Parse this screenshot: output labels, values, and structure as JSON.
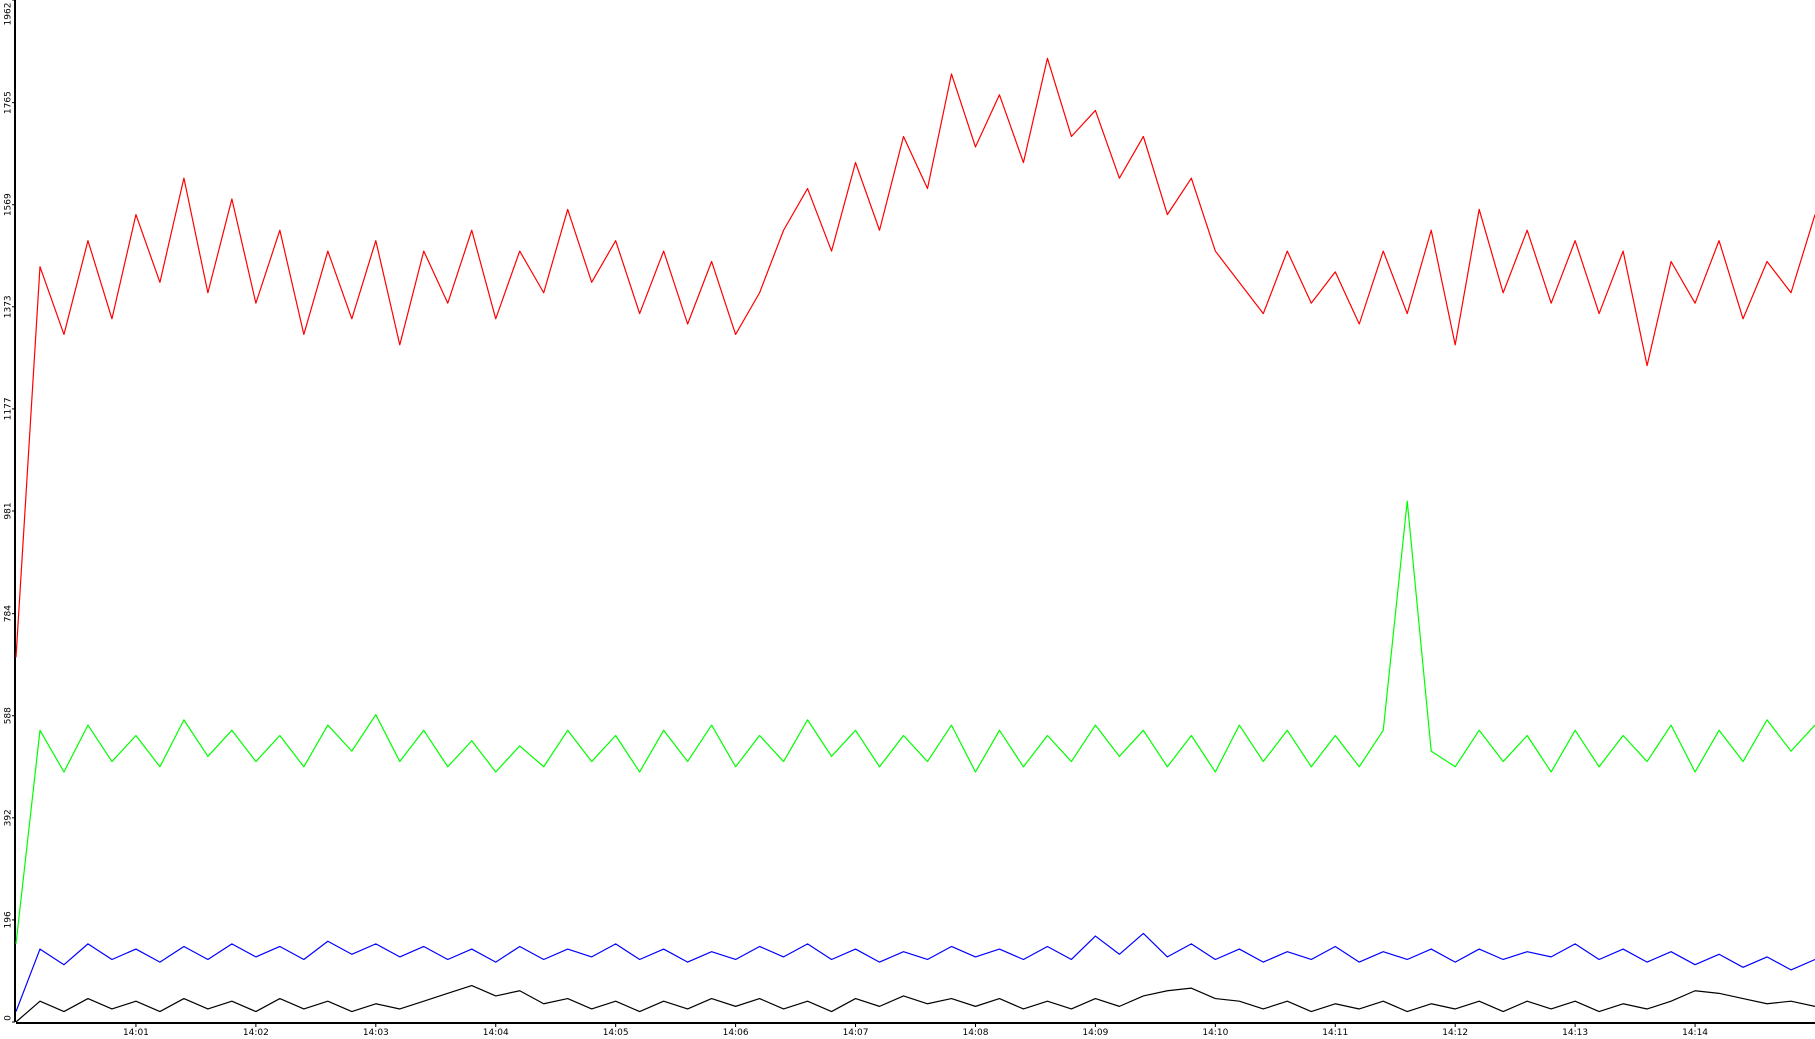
{
  "chart_data": {
    "type": "line",
    "x": [
      0,
      0.2,
      0.4,
      0.6,
      0.8,
      1,
      1.2,
      1.4,
      1.6,
      1.8,
      2,
      2.2,
      2.4,
      2.6,
      2.8,
      3,
      3.2,
      3.4,
      3.6,
      3.8,
      4,
      4.2,
      4.4,
      4.6,
      4.8,
      5,
      5.2,
      5.4,
      5.6,
      5.8,
      6,
      6.2,
      6.4,
      6.6,
      6.8,
      7,
      7.2,
      7.4,
      7.6,
      7.8,
      8,
      8.2,
      8.4,
      8.6,
      8.8,
      9,
      9.2,
      9.4,
      9.6,
      9.8,
      10,
      10.2,
      10.4,
      10.6,
      10.8,
      11,
      11.2,
      11.4,
      11.6,
      11.8,
      12,
      12.2,
      12.4,
      12.6,
      12.8,
      13,
      13.2,
      13.4,
      13.6,
      13.8,
      14,
      14.2,
      14.4,
      14.6,
      14.8,
      15
    ],
    "series": [
      {
        "color": "#ff0000",
        "values": [
          700,
          1450,
          1320,
          1500,
          1350,
          1550,
          1420,
          1620,
          1400,
          1580,
          1380,
          1520,
          1320,
          1480,
          1350,
          1500,
          1300,
          1480,
          1380,
          1520,
          1350,
          1480,
          1400,
          1560,
          1420,
          1500,
          1360,
          1480,
          1340,
          1460,
          1320,
          1400,
          1520,
          1600,
          1480,
          1650,
          1520,
          1700,
          1600,
          1820,
          1680,
          1780,
          1650,
          1850,
          1700,
          1750,
          1620,
          1700,
          1550,
          1620,
          1480,
          1420,
          1360,
          1480,
          1380,
          1440,
          1340,
          1480,
          1360,
          1520,
          1300,
          1560,
          1400,
          1520,
          1380,
          1500,
          1360,
          1480,
          1260,
          1460,
          1380,
          1500,
          1350,
          1460,
          1400,
          1550
        ]
      },
      {
        "color": "#00ff00",
        "values": [
          150,
          560,
          480,
          570,
          500,
          550,
          490,
          580,
          510,
          560,
          500,
          550,
          490,
          570,
          520,
          590,
          500,
          560,
          490,
          540,
          480,
          530,
          490,
          560,
          500,
          550,
          480,
          560,
          500,
          570,
          490,
          550,
          500,
          580,
          510,
          560,
          490,
          550,
          500,
          570,
          480,
          560,
          490,
          550,
          500,
          570,
          510,
          560,
          490,
          550,
          480,
          570,
          500,
          560,
          490,
          550,
          490,
          560,
          1000,
          520,
          490,
          560,
          500,
          550,
          480,
          560,
          490,
          550,
          500,
          570,
          480,
          560,
          500,
          580,
          520,
          570
        ]
      },
      {
        "color": "#0000ff",
        "values": [
          20,
          140,
          110,
          150,
          120,
          140,
          115,
          145,
          120,
          150,
          125,
          145,
          120,
          155,
          130,
          150,
          125,
          145,
          120,
          140,
          115,
          145,
          120,
          140,
          125,
          150,
          120,
          140,
          115,
          135,
          120,
          145,
          125,
          150,
          120,
          140,
          115,
          135,
          120,
          145,
          125,
          140,
          120,
          145,
          120,
          165,
          130,
          170,
          125,
          150,
          120,
          140,
          115,
          135,
          120,
          145,
          115,
          135,
          120,
          140,
          115,
          140,
          120,
          135,
          125,
          150,
          120,
          140,
          115,
          135,
          110,
          130,
          105,
          125,
          100,
          120
        ]
      },
      {
        "color": "#000000",
        "values": [
          0,
          40,
          20,
          45,
          25,
          40,
          20,
          45,
          25,
          40,
          20,
          45,
          25,
          40,
          20,
          35,
          25,
          40,
          55,
          70,
          50,
          60,
          35,
          45,
          25,
          40,
          20,
          40,
          25,
          45,
          30,
          45,
          25,
          40,
          20,
          45,
          30,
          50,
          35,
          45,
          30,
          45,
          25,
          40,
          25,
          45,
          30,
          50,
          60,
          65,
          45,
          40,
          25,
          40,
          20,
          35,
          25,
          40,
          20,
          35,
          25,
          40,
          20,
          40,
          25,
          40,
          20,
          35,
          25,
          40,
          60,
          55,
          45,
          35,
          40,
          30
        ]
      }
    ],
    "xlim": [
      0,
      15
    ],
    "xticks": [
      {
        "value": 1,
        "label": "14:01"
      },
      {
        "value": 2,
        "label": "14:02"
      },
      {
        "value": 3,
        "label": "14:03"
      },
      {
        "value": 4,
        "label": "14:04"
      },
      {
        "value": 5,
        "label": "14:05"
      },
      {
        "value": 6,
        "label": "14:06"
      },
      {
        "value": 7,
        "label": "14:07"
      },
      {
        "value": 8,
        "label": "14:08"
      },
      {
        "value": 9,
        "label": "14:09"
      },
      {
        "value": 10,
        "label": "14:10"
      },
      {
        "value": 11,
        "label": "14:11"
      },
      {
        "value": 12,
        "label": "14:12"
      },
      {
        "value": 13,
        "label": "14:13"
      },
      {
        "value": 14,
        "label": "14:14"
      }
    ],
    "ylim": [
      0,
      1962
    ],
    "yticks": [
      0,
      196,
      392,
      588,
      784,
      981,
      1177,
      1373,
      1569,
      1765,
      1962
    ]
  }
}
